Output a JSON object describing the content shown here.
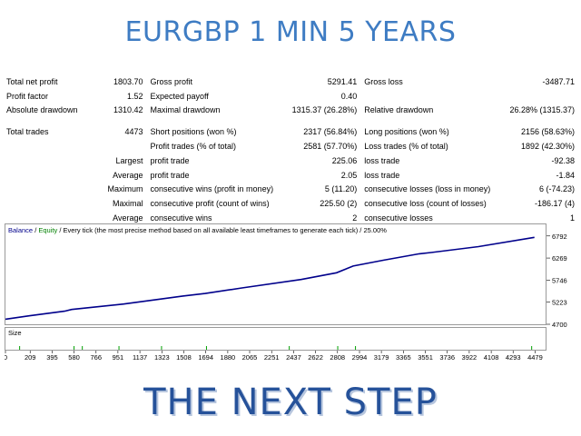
{
  "header": {
    "title": "EURGBP 1 MIN 5 YEARS"
  },
  "report": {
    "rows": [
      [
        "Total net profit",
        "1803.70",
        "Gross profit",
        "5291.41",
        "Gross loss",
        "-3487.71"
      ],
      [
        "Profit factor",
        "1.52",
        "Expected payoff",
        "0.40",
        "",
        ""
      ],
      [
        "Absolute drawdown",
        "1310.42",
        "Maximal drawdown",
        "1315.37 (26.28%)",
        "Relative drawdown",
        "26.28% (1315.37)"
      ],
      [
        "Total trades",
        "4473",
        "Short positions (won %)",
        "2317 (56.84%)",
        "Long positions (won %)",
        "2156 (58.63%)"
      ],
      [
        "",
        "",
        "Profit trades (% of total)",
        "2581 (57.70%)",
        "Loss trades (% of total)",
        "1892 (42.30%)"
      ],
      [
        "",
        "Largest",
        "profit trade",
        "225.06",
        "loss trade",
        "-92.38"
      ],
      [
        "",
        "Average",
        "profit trade",
        "2.05",
        "loss trade",
        "-1.84"
      ],
      [
        "",
        "Maximum",
        "consecutive wins (profit in money)",
        "5 (11.20)",
        "consecutive losses (loss in money)",
        "6 (-74.23)"
      ],
      [
        "",
        "Maximal",
        "consecutive profit (count of wins)",
        "225.50 (2)",
        "consecutive loss (count of losses)",
        "-186.17 (4)"
      ],
      [
        "",
        "Average",
        "consecutive wins",
        "2",
        "consecutive losses",
        "1"
      ]
    ]
  },
  "chart": {
    "legend_balance": "Balance",
    "legend_sep": " / ",
    "legend_equity": "Equity",
    "legend_rest": " / Every tick (the most precise method based on all available least timeframes to generate each tick) / 25.00%",
    "size_label": "Size",
    "colors": {
      "balance": "#00008b",
      "equity": "#008000",
      "size_bars": "#00a000",
      "border": "#9a9a9a"
    }
  },
  "chart_data": {
    "type": "line",
    "series": [
      {
        "name": "Balance",
        "x": [
          0,
          100,
          200,
          500,
          560,
          1000,
          1500,
          1690,
          2000,
          2500,
          2800,
          2940,
          3200,
          3500,
          3600,
          4000,
          4473
        ],
        "y": [
          4820,
          4860,
          4900,
          5010,
          5050,
          5180,
          5370,
          5430,
          5560,
          5760,
          5920,
          6080,
          6220,
          6370,
          6400,
          6540,
          6760
        ]
      }
    ],
    "y_ticks": [
      "6792",
      "6269",
      "5746",
      "5223",
      "4700"
    ],
    "ylim": [
      4700,
      6830
    ],
    "x_ticks": [
      "0",
      "209",
      "395",
      "580",
      "766",
      "951",
      "1137",
      "1323",
      "1508",
      "1694",
      "1880",
      "2065",
      "2251",
      "2437",
      "2622",
      "2808",
      "2994",
      "3179",
      "3365",
      "3551",
      "3736",
      "3922",
      "4108",
      "4293",
      "4479"
    ],
    "xlim": [
      0,
      4560
    ],
    "size_bars_x": [
      120,
      580,
      650,
      960,
      1320,
      1700,
      2400,
      2810,
      2960,
      4450
    ]
  },
  "footer": {
    "title": "THE NEXT STEP"
  }
}
